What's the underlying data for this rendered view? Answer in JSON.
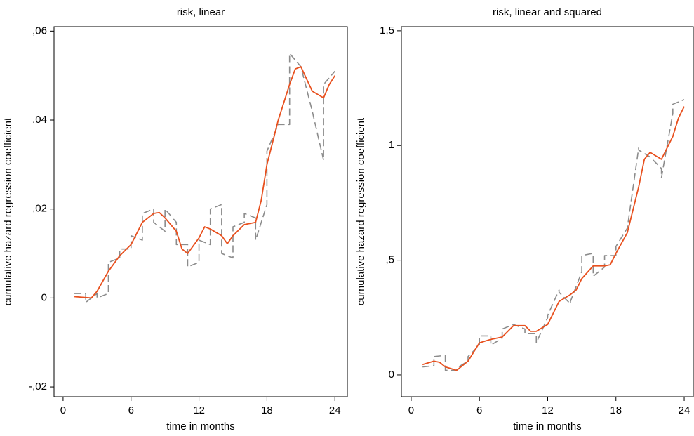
{
  "chart_data": [
    {
      "type": "line",
      "title": "risk, linear",
      "xlabel": "time in months",
      "ylabel": "cumulative hazard regression coefficient",
      "xlim": [
        -0.8,
        25.1
      ],
      "ylim": [
        -0.0222,
        0.061
      ],
      "xticks": [
        0,
        6,
        12,
        18,
        24
      ],
      "yticks": [
        {
          "value": -0.02,
          "label": "-,02"
        },
        0,
        {
          "value": 0.02,
          "label": ",02"
        },
        {
          "value": 0.04,
          "label": ",04"
        },
        {
          "value": 0.06,
          "label": ",06"
        }
      ],
      "series": [
        {
          "color": "#8c8c8c",
          "dash": true,
          "x": [
            1,
            2,
            2,
            3,
            3,
            4,
            4,
            5,
            5,
            6,
            6,
            7,
            7,
            8,
            8,
            9,
            9,
            10,
            10,
            11,
            11,
            12,
            12,
            13,
            13,
            14,
            14,
            15,
            15,
            16,
            16,
            17,
            17,
            18,
            18,
            19,
            20,
            20,
            21,
            22,
            22,
            23,
            23,
            24
          ],
          "values": [
            0.001,
            0.001,
            -0.001,
            0.001,
            0.0,
            0.001,
            0.008,
            0.009,
            0.011,
            0.011,
            0.014,
            0.013,
            0.019,
            0.02,
            0.017,
            0.015,
            0.02,
            0.017,
            0.012,
            0.012,
            0.007,
            0.008,
            0.013,
            0.012,
            0.02,
            0.021,
            0.01,
            0.009,
            0.016,
            0.017,
            0.019,
            0.018,
            0.013,
            0.021,
            0.033,
            0.039,
            0.039,
            0.055,
            0.052,
            0.042,
            0.042,
            0.031,
            0.048,
            0.051
          ]
        },
        {
          "color": "#e8501e",
          "dash": false,
          "x": [
            1,
            2,
            2.5,
            3,
            4,
            5,
            6,
            7,
            8,
            8.5,
            9,
            10,
            10.5,
            11,
            12,
            12.5,
            13,
            14,
            14.5,
            15,
            16,
            17,
            17.5,
            18,
            19,
            20,
            20.5,
            21,
            22,
            23,
            23.5,
            24
          ],
          "values": [
            0.0003,
            0.0001,
            0.0,
            0.0015,
            0.006,
            0.0095,
            0.012,
            0.017,
            0.019,
            0.0192,
            0.018,
            0.015,
            0.011,
            0.01,
            0.0135,
            0.016,
            0.0155,
            0.014,
            0.0122,
            0.014,
            0.0165,
            0.017,
            0.022,
            0.03,
            0.04,
            0.048,
            0.0515,
            0.052,
            0.0465,
            0.045,
            0.048,
            0.05
          ]
        }
      ]
    },
    {
      "type": "line",
      "title": "risk, linear and squared",
      "xlabel": "time in months",
      "ylabel": "cumulative hazard regression coefficient",
      "xlim": [
        -0.86,
        24.8
      ],
      "ylim": [
        -0.095,
        1.518
      ],
      "xticks": [
        0,
        6,
        12,
        18,
        24
      ],
      "yticks": [
        0,
        {
          "value": 0.5,
          "label": ",5"
        },
        1,
        {
          "value": 1.5,
          "label": "1,5"
        }
      ],
      "series": [
        {
          "color": "#8c8c8c",
          "dash": true,
          "x": [
            1,
            2,
            2,
            3,
            3,
            4,
            4,
            5,
            5,
            6,
            6,
            7,
            7,
            8,
            8,
            9,
            9,
            10,
            10,
            11,
            11,
            12,
            12,
            13,
            13,
            14,
            14,
            15,
            15,
            16,
            16,
            17,
            17,
            18,
            18,
            19,
            20,
            20,
            21,
            22,
            22,
            23,
            23,
            24
          ],
          "values": [
            0.035,
            0.04,
            0.08,
            0.085,
            0.02,
            0.02,
            0.03,
            0.06,
            0.08,
            0.13,
            0.17,
            0.17,
            0.13,
            0.16,
            0.2,
            0.22,
            0.22,
            0.2,
            0.18,
            0.18,
            0.14,
            0.25,
            0.26,
            0.37,
            0.36,
            0.31,
            0.32,
            0.45,
            0.52,
            0.53,
            0.43,
            0.47,
            0.52,
            0.52,
            0.56,
            0.64,
            0.99,
            0.98,
            0.95,
            0.9,
            0.86,
            1.14,
            1.18,
            1.2
          ]
        },
        {
          "color": "#e8501e",
          "dash": false,
          "x": [
            1,
            2,
            2.5,
            3,
            4,
            5,
            6,
            7,
            8,
            8.5,
            9,
            10,
            10.5,
            11,
            12,
            12.5,
            13,
            14,
            14.5,
            15,
            16,
            17,
            17.5,
            18,
            19,
            20,
            20.5,
            21,
            22,
            23,
            23.5,
            24
          ],
          "values": [
            0.045,
            0.06,
            0.055,
            0.035,
            0.02,
            0.06,
            0.14,
            0.155,
            0.165,
            0.19,
            0.215,
            0.215,
            0.19,
            0.19,
            0.22,
            0.27,
            0.32,
            0.35,
            0.37,
            0.42,
            0.475,
            0.475,
            0.48,
            0.53,
            0.62,
            0.82,
            0.94,
            0.97,
            0.94,
            1.04,
            1.12,
            1.17
          ]
        }
      ]
    }
  ]
}
